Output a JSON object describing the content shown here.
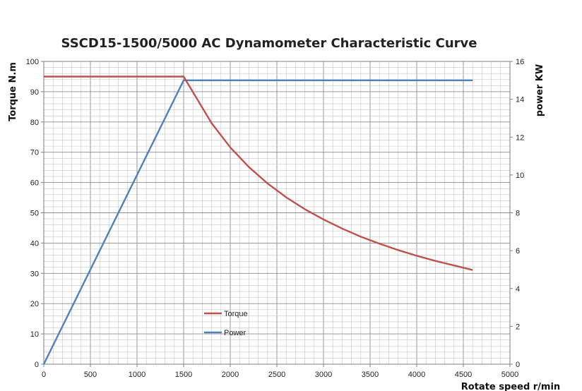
{
  "chart_data": {
    "type": "line",
    "title": "SSCD15-1500/5000 AC Dynamometer Characteristic Curve",
    "xlabel": "Rotate speed r/min",
    "ylabel": "Torque N.m",
    "y2label": "power KW",
    "xlim": [
      0,
      5000
    ],
    "ylim": [
      0,
      100
    ],
    "y2lim": [
      0,
      16
    ],
    "x_ticks": [
      0,
      500,
      1000,
      1500,
      2000,
      2500,
      3000,
      3500,
      4000,
      4500,
      5000
    ],
    "y_ticks": [
      0,
      10,
      20,
      30,
      40,
      50,
      60,
      70,
      80,
      90,
      100
    ],
    "y2_ticks": [
      0,
      2,
      4,
      6,
      8,
      10,
      12,
      14,
      16
    ],
    "grid": true,
    "legend_position": "bottom-center",
    "series": [
      {
        "name": "Torque",
        "axis": "left",
        "color": "#c0504d",
        "x": [
          0,
          1500,
          1800,
          2000,
          2200,
          2400,
          2600,
          2800,
          3000,
          3200,
          3400,
          3600,
          3800,
          4000,
          4200,
          4400,
          4600
        ],
        "y": [
          95,
          95,
          79.6,
          71.6,
          65.1,
          59.7,
          55.1,
          51.2,
          47.8,
          44.8,
          42.1,
          39.8,
          37.7,
          35.8,
          34.1,
          32.6,
          31.1
        ]
      },
      {
        "name": "Power",
        "axis": "right",
        "color": "#4f81bd",
        "x": [
          0,
          1500,
          4600
        ],
        "y": [
          0,
          15,
          15
        ]
      }
    ]
  }
}
